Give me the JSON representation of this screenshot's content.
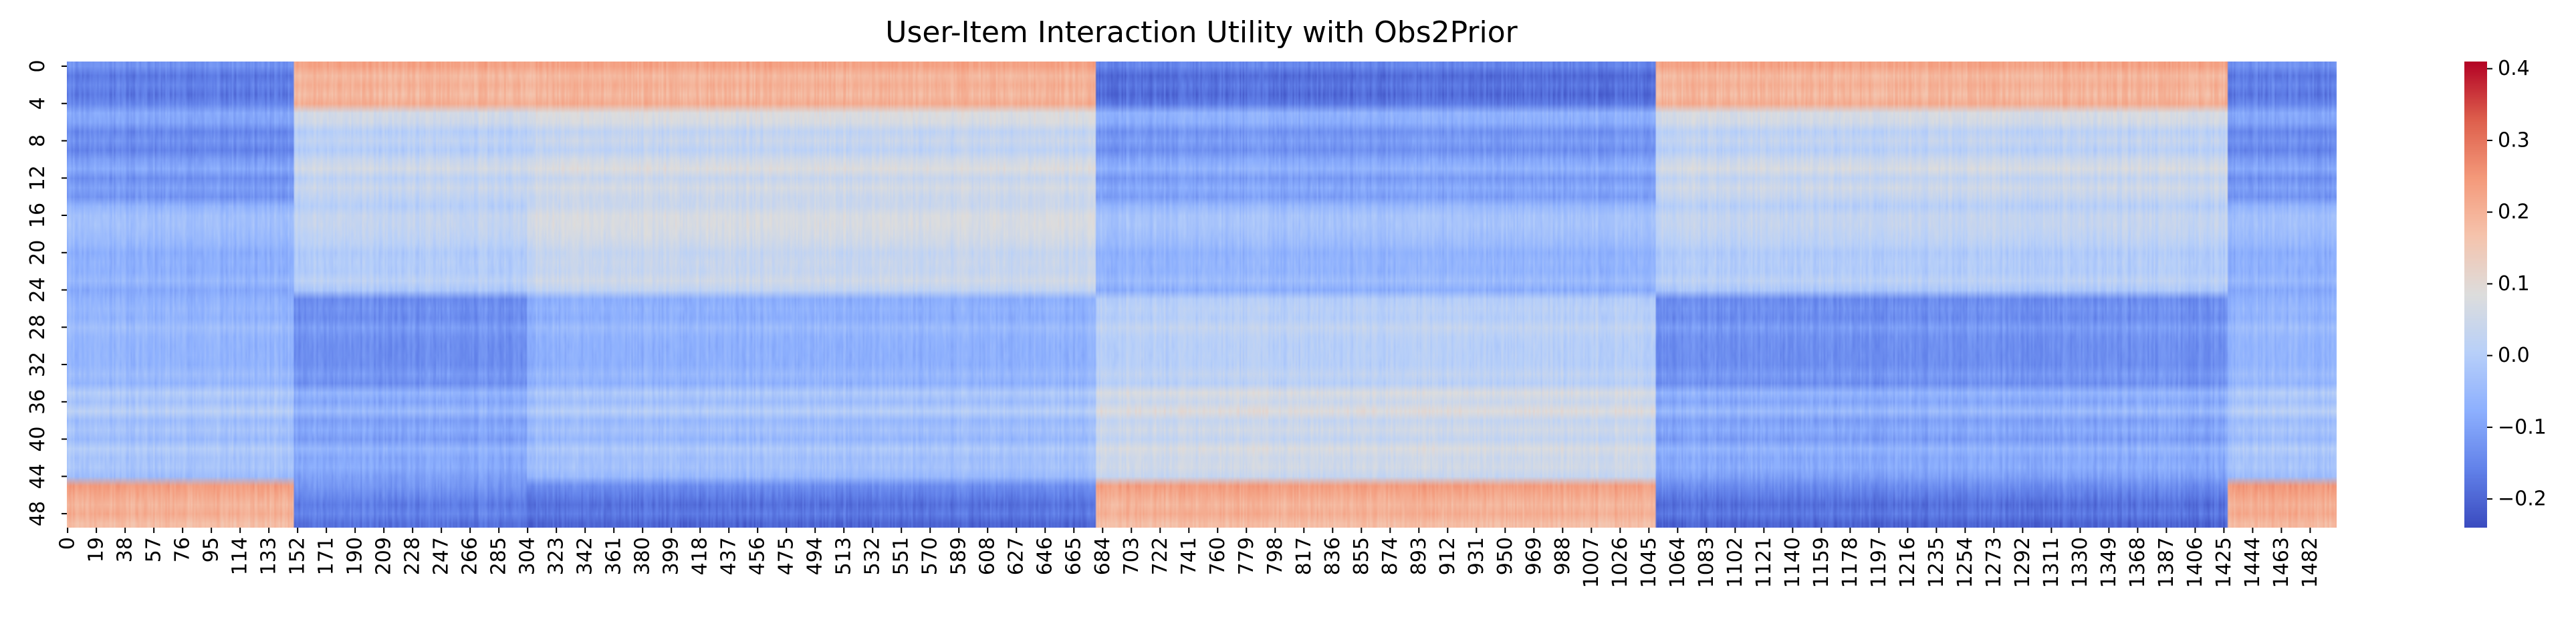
{
  "chart_data": {
    "type": "heatmap",
    "title": "User-Item Interaction Utility with Obs2Prior",
    "xlabel": "",
    "ylabel": "",
    "n_rows": 50,
    "n_cols": 1500,
    "x_tick_labels": [
      "0",
      "19",
      "38",
      "57",
      "76",
      "95",
      "114",
      "133",
      "152",
      "171",
      "190",
      "209",
      "228",
      "247",
      "266",
      "285",
      "304",
      "323",
      "342",
      "361",
      "380",
      "399",
      "418",
      "437",
      "456",
      "475",
      "494",
      "513",
      "532",
      "551",
      "570",
      "589",
      "608",
      "627",
      "646",
      "665",
      "684",
      "703",
      "722",
      "741",
      "760",
      "779",
      "798",
      "817",
      "836",
      "855",
      "874",
      "893",
      "912",
      "931",
      "950",
      "969",
      "988",
      "1007",
      "1026",
      "1045",
      "1064",
      "1083",
      "1102",
      "1121",
      "1140",
      "1159",
      "1178",
      "1197",
      "1216",
      "1235",
      "1254",
      "1273",
      "1292",
      "1311",
      "1330",
      "1349",
      "1368",
      "1387",
      "1406",
      "1425",
      "1444",
      "1463",
      "1482"
    ],
    "y_tick_labels": [
      "0",
      "4",
      "8",
      "12",
      "16",
      "20",
      "24",
      "28",
      "32",
      "36",
      "40",
      "44",
      "48"
    ],
    "colormap": "coolwarm",
    "colorbar": {
      "range": [
        -0.24,
        0.41
      ],
      "ticks": [
        -0.2,
        -0.1,
        0.0,
        0.1,
        0.2,
        0.3,
        0.4
      ],
      "tick_labels": [
        "−0.2",
        "−0.1",
        "0.0",
        "0.1",
        "0.2",
        "0.3",
        "0.4"
      ]
    },
    "column_groups": [
      {
        "cols": [
          0,
          150
        ]
      },
      {
        "cols": [
          150,
          304
        ]
      },
      {
        "cols": [
          304,
          680
        ]
      },
      {
        "cols": [
          680,
          1050
        ]
      },
      {
        "cols": [
          1050,
          1428
        ]
      },
      {
        "cols": [
          1428,
          1500
        ]
      }
    ],
    "row_groups": [
      {
        "rows": [
          0,
          5
        ]
      },
      {
        "rows": [
          5,
          15
        ]
      },
      {
        "rows": [
          15,
          25
        ]
      },
      {
        "rows": [
          25,
          35
        ]
      },
      {
        "rows": [
          35,
          45
        ]
      },
      {
        "rows": [
          45,
          50
        ]
      }
    ],
    "block_mean_values": [
      [
        -0.16,
        0.2,
        0.2,
        -0.18,
        0.2,
        -0.16
      ],
      [
        -0.12,
        0.03,
        0.05,
        -0.1,
        0.04,
        -0.12
      ],
      [
        -0.07,
        0.0,
        0.04,
        -0.06,
        0.0,
        -0.07
      ],
      [
        -0.05,
        -0.12,
        -0.06,
        0.02,
        -0.12,
        -0.05
      ],
      [
        -0.02,
        -0.08,
        -0.03,
        0.06,
        -0.08,
        -0.02
      ],
      [
        0.21,
        -0.15,
        -0.17,
        0.21,
        -0.17,
        0.22
      ]
    ]
  }
}
